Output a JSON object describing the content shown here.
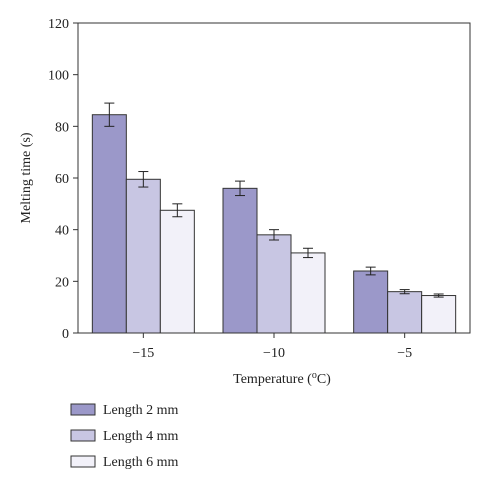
{
  "chart_data": {
    "type": "bar",
    "title": "",
    "xlabel": "Temperature (oC)",
    "xlabel_parts": {
      "before": "Temperature (",
      "sup": "o",
      "after": "C)"
    },
    "ylabel": "Melting time (s)",
    "categories": [
      "−15",
      "−10",
      "−5"
    ],
    "ylim": [
      0,
      120
    ],
    "yticks": [
      0,
      20,
      40,
      60,
      80,
      100,
      120
    ],
    "grid": false,
    "legend_position": "bottom-left",
    "series": [
      {
        "name": "Length 2 mm",
        "values": [
          84.5,
          56,
          24
        ],
        "errors": [
          4.5,
          2.8,
          1.5
        ],
        "color": "#9b98c9"
      },
      {
        "name": "Length 4 mm",
        "values": [
          59.5,
          38,
          16
        ],
        "errors": [
          3,
          2,
          0.8
        ],
        "color": "#c8c6e3"
      },
      {
        "name": "Length 6 mm",
        "values": [
          47.5,
          31,
          14.5
        ],
        "errors": [
          2.5,
          1.8,
          0.6
        ],
        "color": "#f2f1f9"
      }
    ]
  }
}
